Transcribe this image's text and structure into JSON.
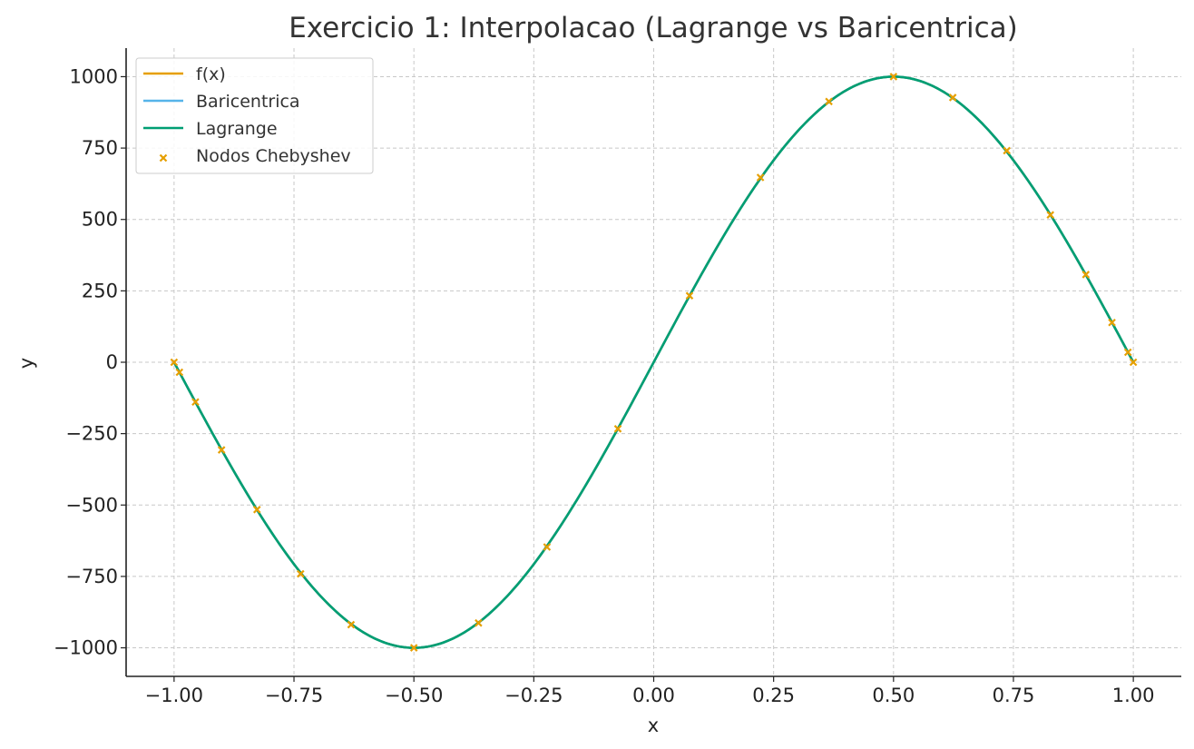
{
  "chart_data": {
    "type": "line",
    "title": "Exercicio 1: Interpolacao (Lagrange vs Baricentrica)",
    "xlabel": "x",
    "ylabel": "y",
    "xlim": [
      -1.1,
      1.1
    ],
    "ylim": [
      -1100,
      1100
    ],
    "xticks": [
      -1.0,
      -0.75,
      -0.5,
      -0.25,
      0.0,
      0.25,
      0.5,
      0.75,
      1.0
    ],
    "xtick_labels": [
      "−1.00",
      "−0.75",
      "−0.50",
      "−0.25",
      "0.00",
      "0.25",
      "0.50",
      "0.75",
      "1.00"
    ],
    "yticks": [
      -1000,
      -750,
      -500,
      -250,
      0,
      250,
      500,
      750,
      1000
    ],
    "ytick_labels": [
      "−1000",
      "−750",
      "−500",
      "−250",
      "0",
      "250",
      "500",
      "750",
      "1000"
    ],
    "grid": true,
    "legend_position": "top-left",
    "function": "1000*sin(pi*x)",
    "series": [
      {
        "name": "f(x)",
        "kind": "line",
        "color": "#E69F00"
      },
      {
        "name": "Baricentrica",
        "kind": "line",
        "color": "#56B4E9"
      },
      {
        "name": "Lagrange",
        "kind": "line",
        "color": "#009E73"
      },
      {
        "name": "Nodos Chebyshev",
        "kind": "scatter",
        "marker": "x",
        "color": "#E69F00",
        "x": [
          -1.0,
          -0.9888,
          -0.9554,
          -0.901,
          -0.8271,
          -0.7362,
          -0.631,
          -0.5,
          -0.3653,
          -0.2225,
          -0.0747,
          0.0747,
          0.2225,
          0.3653,
          0.5,
          0.6236,
          0.7362,
          0.8271,
          0.901,
          0.9554,
          0.9888,
          1.0
        ],
        "y": [
          0,
          -35,
          -139,
          -307,
          -516,
          -741,
          -919,
          -1000,
          -913,
          -647,
          -233,
          233,
          647,
          913,
          1000,
          927,
          741,
          516,
          307,
          139,
          35,
          0
        ]
      }
    ]
  }
}
